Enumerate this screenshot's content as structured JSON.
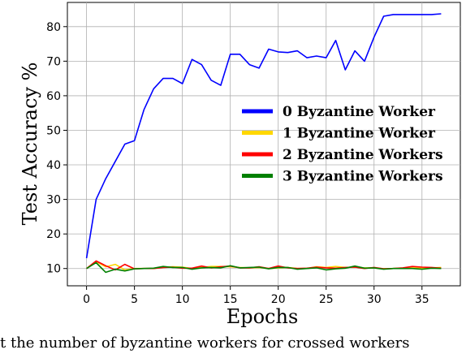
{
  "chart_data": {
    "type": "line",
    "xlabel": "Epochs",
    "ylabel": "Test Accuracy %",
    "xlim": [
      -2,
      39
    ],
    "ylim": [
      5,
      87
    ],
    "xticks": [
      0,
      5,
      10,
      15,
      20,
      25,
      30,
      35
    ],
    "yticks": [
      10,
      20,
      30,
      40,
      50,
      60,
      70,
      80
    ],
    "grid": true,
    "legend_position": "center-right",
    "x": [
      0,
      1,
      2,
      3,
      4,
      5,
      6,
      7,
      8,
      9,
      10,
      11,
      12,
      13,
      14,
      15,
      16,
      17,
      18,
      19,
      20,
      21,
      22,
      23,
      24,
      25,
      26,
      27,
      28,
      29,
      30,
      31,
      32,
      33,
      34,
      35,
      36,
      37
    ],
    "series": [
      {
        "name": "0 Byzantine Worker",
        "color": "#0000ff",
        "values": [
          13,
          30,
          36,
          41,
          46,
          47,
          56,
          62,
          65,
          65,
          63.5,
          70.5,
          69,
          64.5,
          63,
          72,
          72,
          69,
          68,
          73.5,
          72.7,
          72.5,
          73,
          71,
          71.5,
          71,
          76,
          67.5,
          73,
          70,
          77,
          83,
          83.5,
          83.5,
          83.5,
          83.5,
          83.5,
          83.7
        ]
      },
      {
        "name": "1 Byzantine Worker",
        "color": "#ffd700",
        "values": [
          10,
          12,
          10.5,
          11.2,
          9.6,
          10,
          10,
          10,
          10.4,
          10.5,
          10.4,
          10,
          10.3,
          10.6,
          10.6,
          10.5,
          10.3,
          10.2,
          10.3,
          10,
          10.2,
          10.3,
          10,
          10,
          10.5,
          10.3,
          10.6,
          10.3,
          10.4,
          10.2,
          10.2,
          9.9,
          10,
          10.1,
          10.2,
          10.2,
          10.2,
          10.3
        ]
      },
      {
        "name": "2 Byzantine Workers",
        "color": "#ff0000",
        "values": [
          10,
          12.2,
          10.8,
          9.6,
          11.2,
          9.9,
          10,
          10,
          10.3,
          10.4,
          10.1,
          10.1,
          10.7,
          10.2,
          10.5,
          10.7,
          10.2,
          10.2,
          10.5,
          10,
          10.7,
          10.2,
          10,
          10.1,
          10.4,
          10.2,
          10.1,
          10.3,
          10.4,
          10,
          10.3,
          9.9,
          10,
          10.2,
          10.6,
          10.4,
          10.3,
          10.1
        ]
      },
      {
        "name": "3 Byzantine Workers",
        "color": "#008000",
        "values": [
          10,
          11.7,
          8.9,
          9.8,
          9.3,
          9.9,
          10,
          10.1,
          10.6,
          10.3,
          10.3,
          9.8,
          10.2,
          10.3,
          10.2,
          10.8,
          10.2,
          10.3,
          10.4,
          9.9,
          10.3,
          10.3,
          9.8,
          10,
          10.2,
          9.6,
          9.9,
          10.1,
          10.7,
          10.1,
          10.2,
          9.8,
          10,
          10,
          10,
          9.8,
          10.1,
          10
        ]
      }
    ]
  },
  "caption": "t    the number of byzantine workers for crossed workers"
}
